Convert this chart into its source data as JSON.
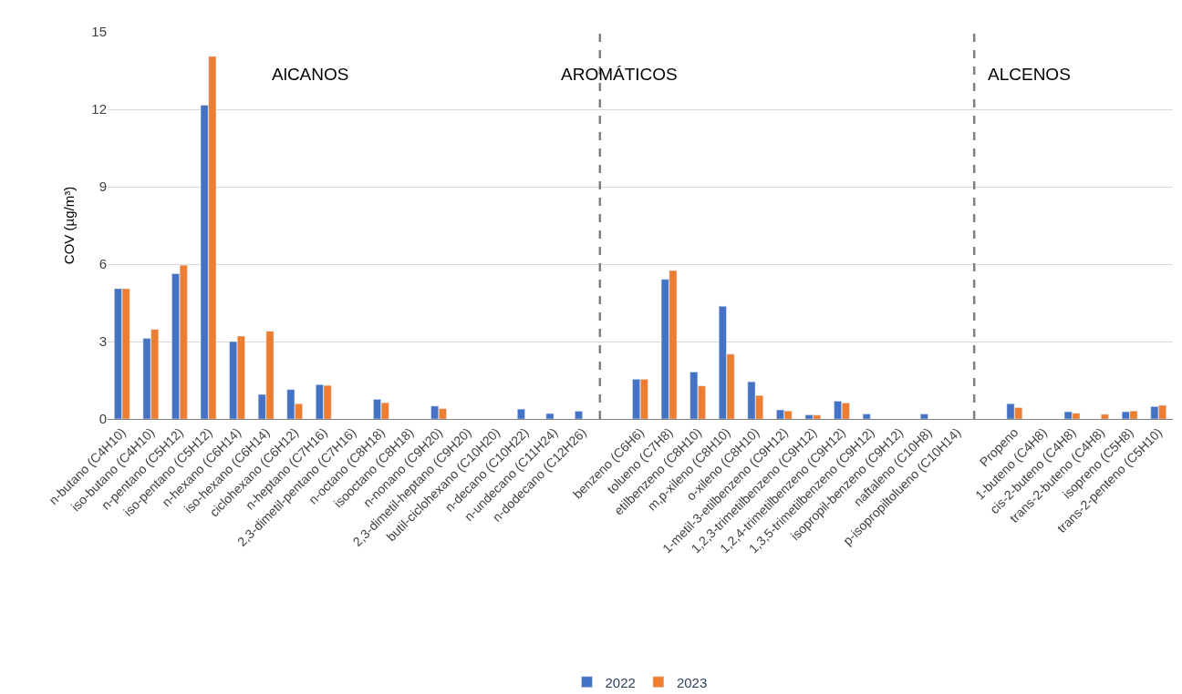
{
  "chart_data": {
    "type": "bar",
    "ylabel": "COV (µg/m³)",
    "categories": [
      "n-butano (C4H10)",
      "iso-butano (C4H10)",
      "n-pentano (C5H12)",
      "iso-pentano (C5H12)",
      "n-hexano (C6H14)",
      "iso-hexano (C6H14)",
      "ciclohexano (C6H12)",
      "n-heptano (C7H16)",
      "2,3-dimetil-pentano (C7H16)",
      "n-octano (C8H18)",
      "isooctano (C8H18)",
      "n-nonano (C9H20)",
      "2,3-dimetil-heptano (C9H20)",
      "butil-ciclohexano (C10H20)",
      "n-decano (C10H22)",
      "n-undecano (C11H24)",
      "n-dodecano (C12H26)",
      null,
      "benzeno (C6H6)",
      "tolueno (C7H8)",
      "etilbenzeno (C8H10)",
      "m,p-xileno (C8H10)",
      "o-xileno (C8H10)",
      "1-metil-3-etilbenzeno (C9H12)",
      "1,2,3-trimetilbenzeno (C9H12)",
      "1,2,4-trimetilbenzeno (C9H12)",
      "1,3,5-trimetilbenzeno (C9H12)",
      "isopropil-benzeno (C9H12)",
      "naftaleno (C10H8)",
      "p-isopropiltolueno (C10H14)",
      null,
      "Propeno",
      "1-buteno (C4H8)",
      "cis-2-buteno (C4H8)",
      "trans-2-buteno (C4H8)",
      "isopreno (C5H8)",
      "trans-2-penteno (C5H10)"
    ],
    "series": [
      {
        "name": "2022",
        "color": "#4472c4",
        "values": [
          5.05,
          3.12,
          5.63,
          12.16,
          3.0,
          0.95,
          1.14,
          1.33,
          null,
          0.76,
          null,
          0.5,
          null,
          null,
          0.38,
          0.21,
          0.3,
          null,
          1.54,
          5.41,
          1.82,
          4.37,
          1.44,
          0.35,
          0.16,
          0.69,
          0.19,
          null,
          0.19,
          null,
          null,
          0.59,
          null,
          0.28,
          null,
          0.28,
          0.48
        ]
      },
      {
        "name": "2023",
        "color": "#ed7d31",
        "values": [
          5.05,
          3.47,
          5.96,
          14.05,
          3.21,
          3.4,
          0.59,
          1.3,
          null,
          0.63,
          null,
          0.4,
          null,
          null,
          null,
          null,
          null,
          null,
          1.54,
          5.75,
          1.28,
          2.51,
          0.91,
          0.31,
          0.15,
          0.62,
          null,
          null,
          null,
          null,
          null,
          0.44,
          null,
          0.22,
          0.18,
          0.31,
          0.53
        ]
      }
    ],
    "ylim": [
      0,
      15
    ],
    "yticks": [
      0,
      3,
      6,
      9,
      12,
      15
    ],
    "grid": "y",
    "legend": "bottom",
    "annotations": [
      "AlCANOS",
      "AROMÁTICOS",
      "ALCENOS"
    ]
  }
}
